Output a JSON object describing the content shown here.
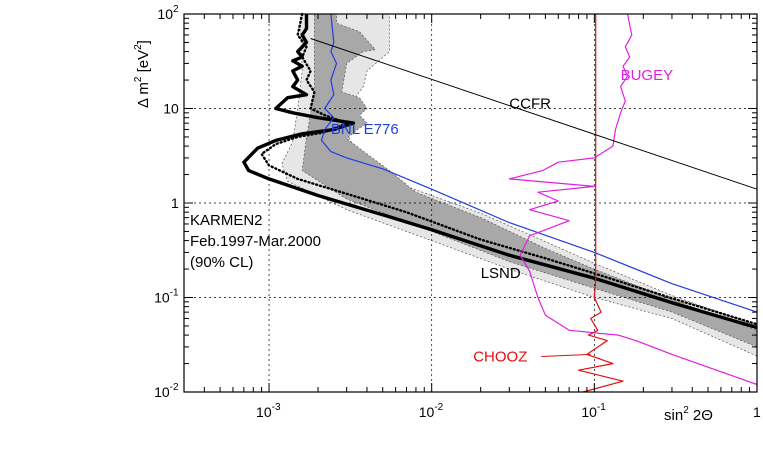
{
  "chart_data": {
    "type": "line",
    "x_scale": "log",
    "y_scale": "log",
    "xlim": [
      0.0003,
      1
    ],
    "ylim": [
      0.01,
      100
    ],
    "x_decades": [
      {
        "base": "10",
        "exp": "-3",
        "value": 0.001
      },
      {
        "base": "10",
        "exp": "-2",
        "value": 0.01
      },
      {
        "base": "10",
        "exp": "-1",
        "value": 0.1
      },
      {
        "base": "1",
        "exp": "",
        "value": 1
      }
    ],
    "y_decades": [
      {
        "base": "10",
        "exp": "-2",
        "value": 0.01
      },
      {
        "base": "10",
        "exp": "-1",
        "value": 0.1
      },
      {
        "base": "1",
        "exp": "",
        "value": 1
      },
      {
        "base": "10",
        "exp": "",
        "value": 10
      },
      {
        "base": "10",
        "exp": "2",
        "value": 100
      }
    ],
    "xlabel": {
      "main": "sin",
      "sup": "2",
      "rest": " 2Θ"
    },
    "ylabel": {
      "main": "Δ m",
      "sup1": "2",
      "mid": " [eV",
      "sup2": "2",
      "end": "]"
    },
    "grid": "dashed at decades",
    "legend_block": [
      "KARMEN2",
      "Feb.1997-Mar.2000",
      "(90% CL)"
    ],
    "regions": [
      {
        "name": "LSND 99% CL",
        "color": "#e6e6e6",
        "points": [
          [
            0.00155,
            100
          ],
          [
            0.0055,
            100
          ],
          [
            0.0055,
            40
          ],
          [
            0.004,
            25
          ],
          [
            0.0038,
            17
          ],
          [
            0.003,
            10
          ],
          [
            0.0028,
            7
          ],
          [
            0.0033,
            4
          ],
          [
            0.005,
            2.4
          ],
          [
            0.007,
            1.5
          ],
          [
            0.02,
            0.78
          ],
          [
            0.05,
            0.39
          ],
          [
            0.1,
            0.23
          ],
          [
            0.3,
            0.105
          ],
          [
            1,
            0.05
          ],
          [
            1,
            0.024
          ],
          [
            0.3,
            0.06
          ],
          [
            0.1,
            0.1
          ],
          [
            0.03,
            0.2
          ],
          [
            0.01,
            0.4
          ],
          [
            0.003,
            0.85
          ],
          [
            0.0013,
            1.7
          ],
          [
            0.0012,
            2.6
          ],
          [
            0.0014,
            4.5
          ],
          [
            0.0015,
            10
          ],
          [
            0.0016,
            25
          ]
        ]
      },
      {
        "name": "LSND 90% CL",
        "color": "#a8a8a8",
        "points": [
          [
            0.0019,
            100
          ],
          [
            0.0026,
            100
          ],
          [
            0.0026,
            80
          ],
          [
            0.0036,
            65
          ],
          [
            0.0045,
            42
          ],
          [
            0.0038,
            40
          ],
          [
            0.003,
            30
          ],
          [
            0.0028,
            15
          ],
          [
            0.0036,
            13
          ],
          [
            0.004,
            10
          ],
          [
            0.0036,
            8.5
          ],
          [
            0.004,
            7
          ],
          [
            0.0035,
            6
          ],
          [
            0.003,
            4.8
          ],
          [
            0.004,
            3.3
          ],
          [
            0.0055,
            2.2
          ],
          [
            0.008,
            1.3
          ],
          [
            0.02,
            0.7
          ],
          [
            0.05,
            0.33
          ],
          [
            0.1,
            0.2
          ],
          [
            0.3,
            0.095
          ],
          [
            1,
            0.045
          ],
          [
            1,
            0.03
          ],
          [
            0.3,
            0.07
          ],
          [
            0.1,
            0.125
          ],
          [
            0.03,
            0.24
          ],
          [
            0.01,
            0.5
          ],
          [
            0.003,
            1.1
          ],
          [
            0.0016,
            2.2
          ],
          [
            0.0017,
            5
          ],
          [
            0.0019,
            15
          ]
        ]
      }
    ],
    "series": [
      {
        "name": "KARMEN2",
        "color": "#000000",
        "style": "solid",
        "width": 3.4,
        "points": [
          [
            0.0017,
            100
          ],
          [
            0.0017,
            70
          ],
          [
            0.0016,
            60
          ],
          [
            0.0017,
            50
          ],
          [
            0.0015,
            40
          ],
          [
            0.0016,
            35
          ],
          [
            0.0014,
            32
          ],
          [
            0.0016,
            28
          ],
          [
            0.0014,
            25
          ],
          [
            0.0015,
            20
          ],
          [
            0.0014,
            17
          ],
          [
            0.0017,
            14
          ],
          [
            0.0013,
            13
          ],
          [
            0.0011,
            10
          ],
          [
            0.0014,
            9
          ],
          [
            0.002,
            8
          ],
          [
            0.0033,
            7
          ],
          [
            0.0025,
            6
          ],
          [
            0.0016,
            5.4
          ],
          [
            0.0011,
            4.6
          ],
          [
            0.00085,
            3.8
          ],
          [
            0.0007,
            2.7
          ],
          [
            0.00075,
            2.2
          ],
          [
            0.001,
            1.8
          ],
          [
            0.002,
            1.2
          ],
          [
            0.005,
            0.75
          ],
          [
            0.01,
            0.52
          ],
          [
            0.03,
            0.28
          ],
          [
            0.1,
            0.16
          ],
          [
            0.3,
            0.088
          ],
          [
            1,
            0.048
          ]
        ]
      },
      {
        "name": "KARMEN2 sensitivity",
        "color": "#000000",
        "style": "dotted",
        "width": 2.4,
        "points": [
          [
            0.0016,
            100
          ],
          [
            0.0015,
            60
          ],
          [
            0.0017,
            45
          ],
          [
            0.0016,
            35
          ],
          [
            0.0018,
            25
          ],
          [
            0.0017,
            20
          ],
          [
            0.0019,
            15
          ],
          [
            0.0018,
            10
          ],
          [
            0.0022,
            8.5
          ],
          [
            0.003,
            7
          ],
          [
            0.0022,
            5.6
          ],
          [
            0.0015,
            5
          ],
          [
            0.0011,
            4.2
          ],
          [
            0.0009,
            3.3
          ],
          [
            0.001,
            2.5
          ],
          [
            0.0015,
            1.8
          ],
          [
            0.003,
            1.25
          ],
          [
            0.007,
            0.8
          ],
          [
            0.02,
            0.41
          ],
          [
            0.05,
            0.26
          ],
          [
            0.1,
            0.18
          ],
          [
            0.3,
            0.098
          ],
          [
            1,
            0.052
          ]
        ]
      },
      {
        "name": "BNL E776",
        "color": "#1f3ee0",
        "style": "solid",
        "width": 1.2,
        "points": [
          [
            0.0024,
            100
          ],
          [
            0.0025,
            50
          ],
          [
            0.0024,
            40
          ],
          [
            0.0026,
            30
          ],
          [
            0.0024,
            20
          ],
          [
            0.0025,
            14
          ],
          [
            0.0022,
            10
          ],
          [
            0.0025,
            8
          ],
          [
            0.0022,
            6
          ],
          [
            0.0021,
            4.6
          ],
          [
            0.0024,
            3.5
          ],
          [
            0.003,
            3
          ],
          [
            0.005,
            2.3
          ],
          [
            0.01,
            1.4
          ],
          [
            0.03,
            0.62
          ],
          [
            0.1,
            0.3
          ],
          [
            0.3,
            0.14
          ],
          [
            1,
            0.07
          ]
        ]
      },
      {
        "name": "BUGEY",
        "color": "#e020e0",
        "style": "solid",
        "width": 1.2,
        "points": [
          [
            0.16,
            100
          ],
          [
            0.17,
            60
          ],
          [
            0.155,
            45
          ],
          [
            0.165,
            35
          ],
          [
            0.15,
            28
          ],
          [
            0.16,
            22
          ],
          [
            0.145,
            17
          ],
          [
            0.155,
            12
          ],
          [
            0.145,
            9
          ],
          [
            0.135,
            6
          ],
          [
            0.13,
            4
          ],
          [
            0.1,
            3
          ],
          [
            0.06,
            2.7
          ],
          [
            0.048,
            2.2
          ],
          [
            0.03,
            1.8
          ],
          [
            0.1,
            1.5
          ],
          [
            0.045,
            1.3
          ],
          [
            0.06,
            1.05
          ],
          [
            0.04,
            0.85
          ],
          [
            0.07,
            0.65
          ],
          [
            0.04,
            0.45
          ],
          [
            0.035,
            0.28
          ],
          [
            0.04,
            0.19
          ],
          [
            0.045,
            0.1
          ],
          [
            0.05,
            0.065
          ],
          [
            0.07,
            0.045
          ],
          [
            0.14,
            0.04
          ],
          [
            0.18,
            0.035
          ],
          [
            0.3,
            0.025
          ],
          [
            1,
            0.012
          ]
        ]
      },
      {
        "name": "CHOOZ",
        "color": "#e01010",
        "style": "solid",
        "width": 1.2,
        "points": [
          [
            0.102,
            100
          ],
          [
            0.102,
            1
          ],
          [
            0.102,
            0.15
          ],
          [
            0.1,
            0.1
          ],
          [
            0.11,
            0.07
          ],
          [
            0.095,
            0.06
          ],
          [
            0.105,
            0.045
          ],
          [
            0.092,
            0.04
          ],
          [
            0.12,
            0.035
          ],
          [
            0.09,
            0.025
          ],
          [
            0.13,
            0.02
          ],
          [
            0.08,
            0.017
          ],
          [
            0.15,
            0.013
          ],
          [
            0.085,
            0.01
          ]
        ]
      },
      {
        "name": "CCFR",
        "color": "#000000",
        "style": "solid",
        "width": 1.0,
        "points": [
          [
            0.0018,
            55
          ],
          [
            1,
            1.4
          ]
        ]
      }
    ],
    "annotations": [
      {
        "text": "BUGEY",
        "color": "#e020e0",
        "x": 0.145,
        "y": 20
      },
      {
        "text": "CCFR",
        "color": "#000000",
        "x": 0.03,
        "y": 10
      },
      {
        "text": "BNL E776",
        "color": "#1f3ee0",
        "x": 0.0024,
        "y": 5.4
      },
      {
        "text": "LSND",
        "color": "#000000",
        "x": 0.02,
        "y": 0.16
      },
      {
        "text": "CHOOZ",
        "color": "#e01010",
        "x": 0.018,
        "y": 0.021
      }
    ]
  }
}
